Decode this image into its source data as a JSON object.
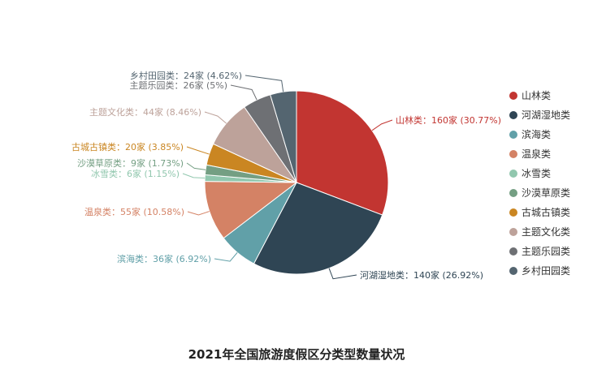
{
  "chart_data": {
    "type": "pie",
    "title": "2021年全国旅游度假区分类型数量状况",
    "unit": "家",
    "slices": [
      {
        "name": "山林类",
        "value": 160,
        "percent": "30.77%",
        "color": "#c23531"
      },
      {
        "name": "河湖湿地类",
        "value": 140,
        "percent": "26.92%",
        "color": "#2f4554"
      },
      {
        "name": "滨海类",
        "value": 36,
        "percent": "6.92%",
        "color": "#61a0a8"
      },
      {
        "name": "温泉类",
        "value": 55,
        "percent": "10.58%",
        "color": "#d48265"
      },
      {
        "name": "冰雪类",
        "value": 6,
        "percent": "1.15%",
        "color": "#91c7ae"
      },
      {
        "name": "沙漠草原类",
        "value": 9,
        "percent": "1.73%",
        "color": "#749f83"
      },
      {
        "name": "古城古镇类",
        "value": 20,
        "percent": "3.85%",
        "color": "#ca8622"
      },
      {
        "name": "主题文化类",
        "value": 44,
        "percent": "8.46%",
        "color": "#bda29a"
      },
      {
        "name": "主题乐园类",
        "value": 26,
        "percent": "5%",
        "color": "#6e7074"
      },
      {
        "name": "乡村田园类",
        "value": 24,
        "percent": "4.62%",
        "color": "#546570"
      }
    ],
    "legend_position": "right"
  }
}
